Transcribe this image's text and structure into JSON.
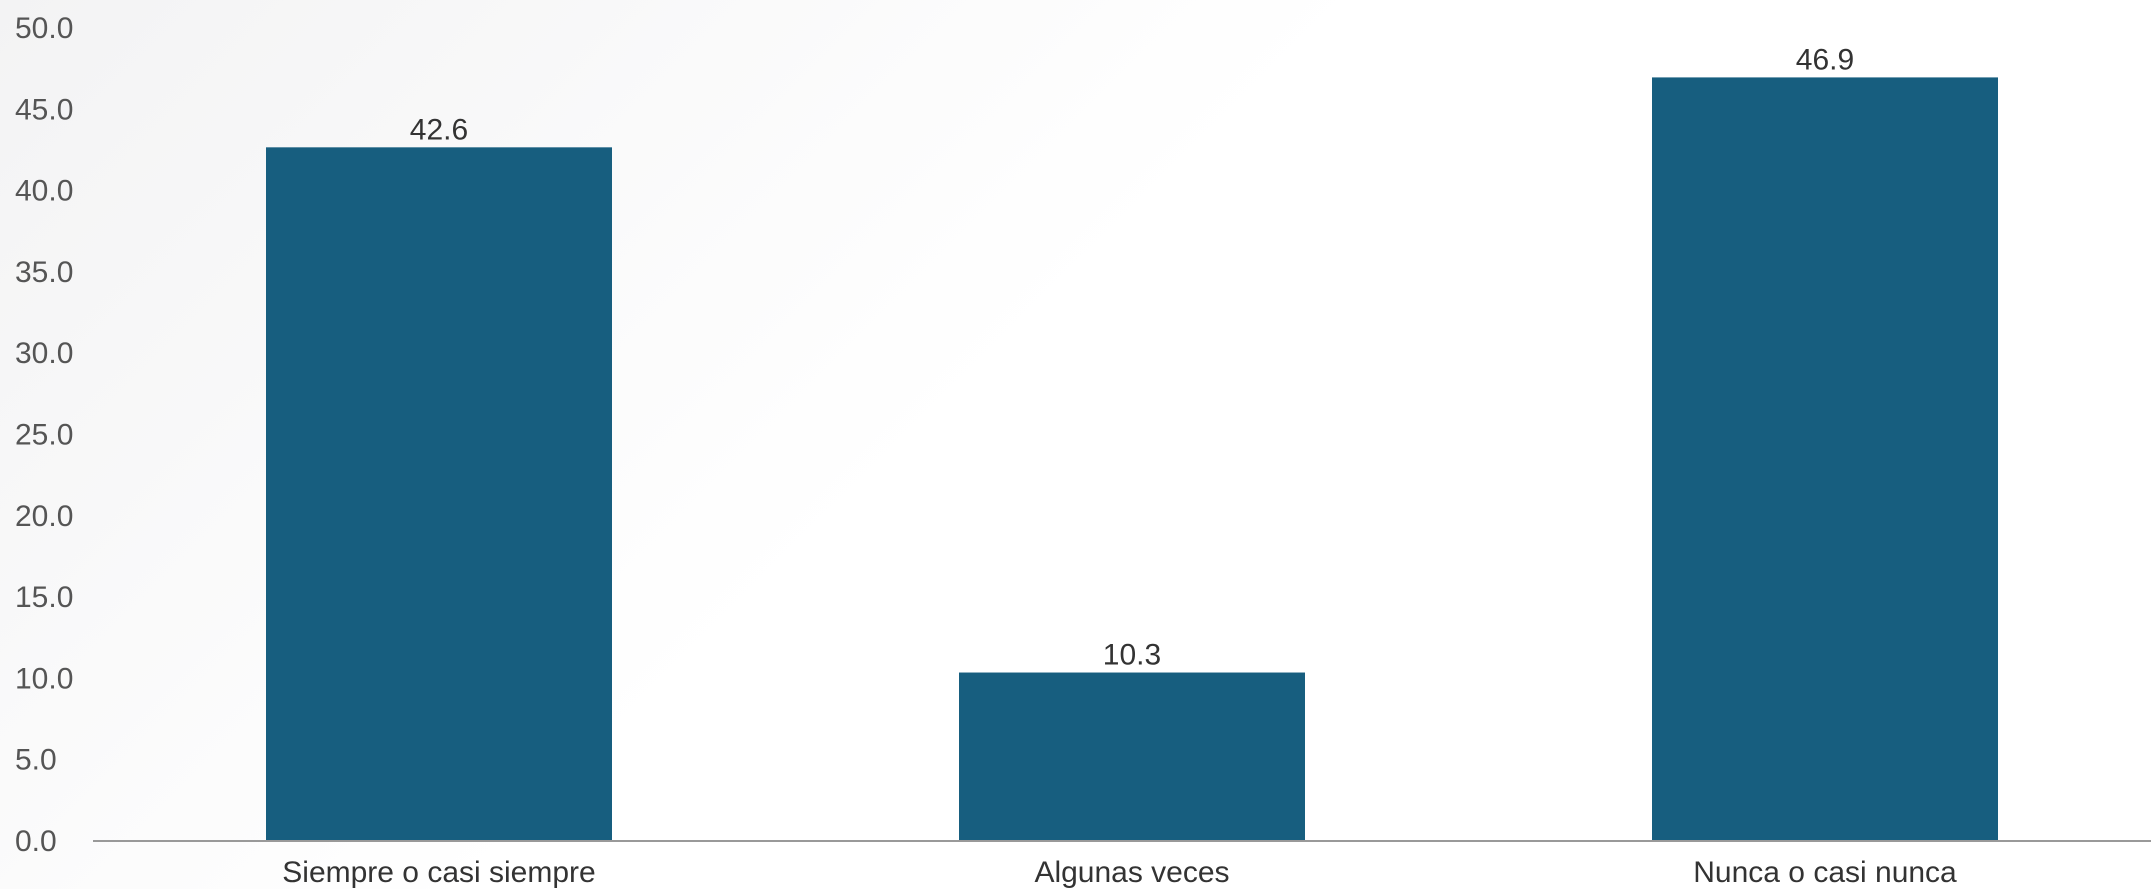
{
  "chart_data": {
    "type": "bar",
    "title": "",
    "xlabel": "",
    "ylabel": "",
    "categories": [
      "Siempre o casi siempre",
      "Algunas veces",
      "Nunca o casi nunca"
    ],
    "values": [
      42.6,
      10.3,
      46.9
    ],
    "value_labels": [
      "42.6",
      "10.3",
      "46.9"
    ],
    "ylim": [
      0,
      50
    ],
    "y_ticks": [
      "0.0",
      "5.0",
      "10.0",
      "15.0",
      "20.0",
      "25.0",
      "30.0",
      "35.0",
      "40.0",
      "45.0",
      "50.0"
    ],
    "y_tick_values": [
      0,
      5,
      10,
      15,
      20,
      25,
      30,
      35,
      40,
      45,
      50
    ],
    "grid": false,
    "legend": "none",
    "bar_color": "#175e7f"
  }
}
